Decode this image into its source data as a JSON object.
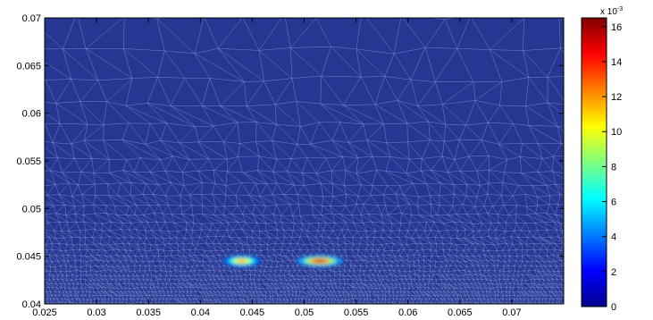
{
  "chart_data": {
    "type": "heatmap",
    "title": "",
    "xlabel": "",
    "ylabel": "",
    "xlim": [
      0.025,
      0.075
    ],
    "ylim": [
      0.04,
      0.07
    ],
    "x_ticks": [
      "0.025",
      "0.03",
      "0.035",
      "0.04",
      "0.045",
      "0.05",
      "0.055",
      "0.06",
      "0.065",
      "0.07"
    ],
    "y_ticks": [
      "0.04",
      "0.045",
      "0.05",
      "0.055",
      "0.06",
      "0.065",
      "0.07"
    ],
    "colorbar": {
      "range": [
        0,
        0.0165
      ],
      "scale_label": "x 10",
      "scale_exponent": "-3",
      "ticks": [
        "0",
        "2",
        "4",
        "6",
        "8",
        "10",
        "12",
        "14",
        "16"
      ],
      "colormap": "jet"
    },
    "background_color": "#253793",
    "mesh_line_color": "#8f9cd0",
    "grid": false,
    "hotspots": [
      {
        "x": 0.044,
        "y": 0.0445,
        "rx": 0.0018,
        "ry": 0.0006,
        "peak": 0.0125
      },
      {
        "x": 0.0515,
        "y": 0.0445,
        "rx": 0.0022,
        "ry": 0.0006,
        "peak": 0.0155
      }
    ]
  }
}
